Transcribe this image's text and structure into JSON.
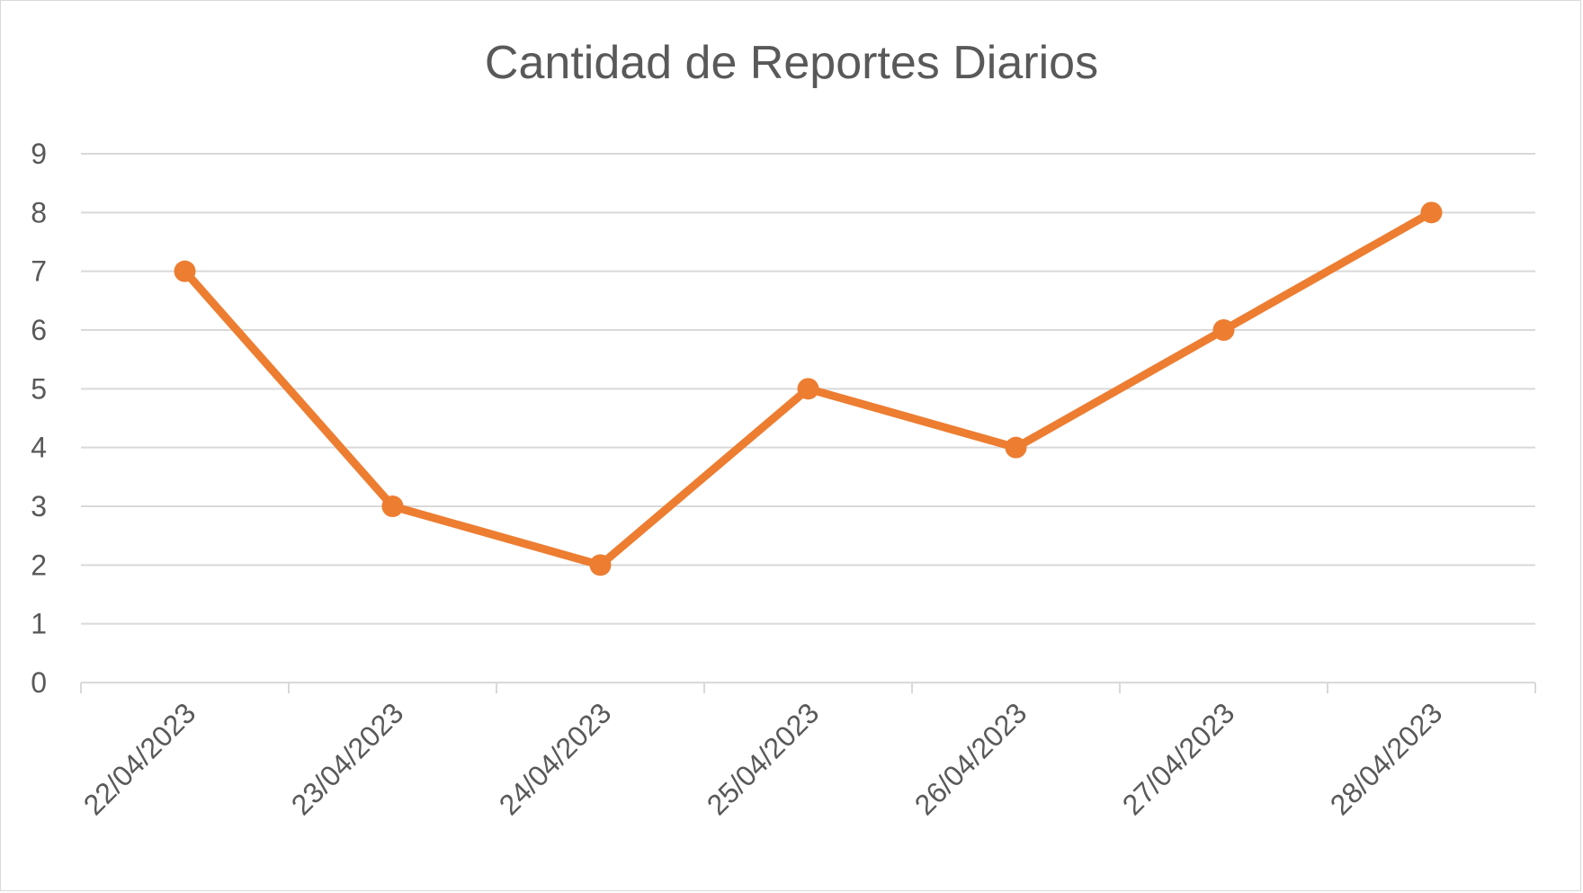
{
  "chart_data": {
    "type": "line",
    "title": "Cantidad de Reportes Diarios",
    "xlabel": "",
    "ylabel": "",
    "categories": [
      "22/04/2023",
      "23/04/2023",
      "24/04/2023",
      "25/04/2023",
      "26/04/2023",
      "27/04/2023",
      "28/04/2023"
    ],
    "series": [
      {
        "values": [
          7,
          3,
          2,
          5,
          4,
          6,
          8
        ],
        "color": "#ED7D31"
      }
    ],
    "ylim": [
      0,
      9
    ],
    "yticks": [
      0,
      1,
      2,
      3,
      4,
      5,
      6,
      7,
      8,
      9
    ],
    "grid": true,
    "legend": "none",
    "colors": {
      "grid": "#d9d9d9",
      "text": "#595959",
      "line": "#ED7D31"
    }
  }
}
